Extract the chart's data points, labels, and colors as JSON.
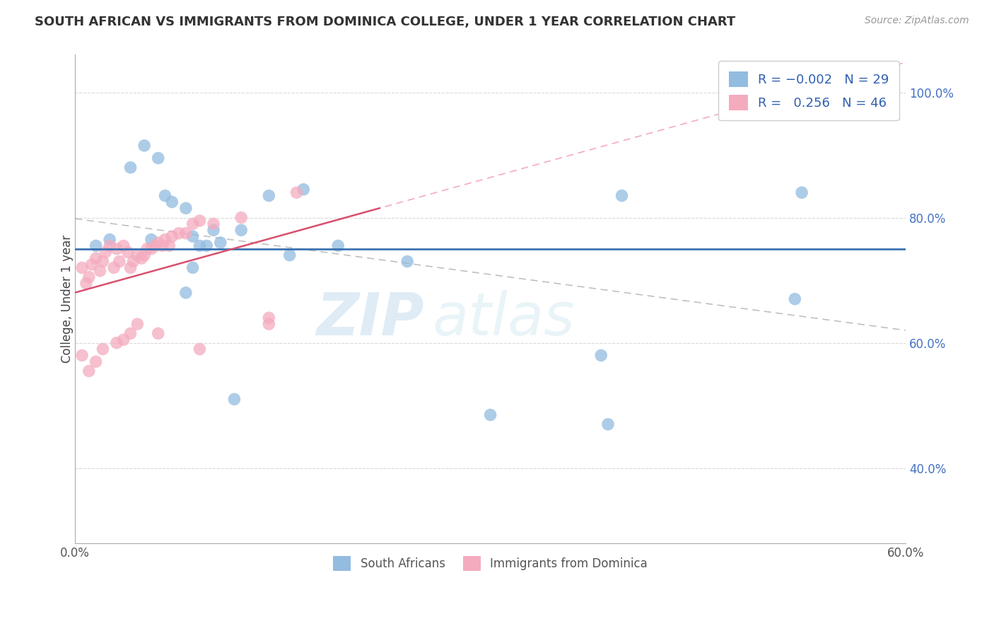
{
  "title": "SOUTH AFRICAN VS IMMIGRANTS FROM DOMINICA COLLEGE, UNDER 1 YEAR CORRELATION CHART",
  "source": "Source: ZipAtlas.com",
  "ylabel": "College, Under 1 year",
  "xlim": [
    0.0,
    0.6
  ],
  "ylim": [
    0.28,
    1.06
  ],
  "xtick_labels": [
    "0.0%",
    "",
    "",
    "",
    "",
    "",
    "60.0%"
  ],
  "xtick_vals": [
    0.0,
    0.1,
    0.2,
    0.3,
    0.4,
    0.5,
    0.6
  ],
  "ytick_labels": [
    "40.0%",
    "60.0%",
    "80.0%",
    "100.0%"
  ],
  "ytick_vals": [
    0.4,
    0.6,
    0.8,
    1.0
  ],
  "legend_bottom1": "South Africans",
  "legend_bottom2": "Immigrants from Dominica",
  "blue_dot_color": "#92bce0",
  "pink_dot_color": "#f4abbe",
  "blue_line_color": "#3b72b0",
  "pink_line_color": "#d94f6e",
  "dashed_blue_color": "#c0c0c0",
  "dashed_pink_color": "#f4abbe",
  "watermark_zip": "ZIP",
  "watermark_atlas": "atlas",
  "blue_dots_x": [
    0.015,
    0.04,
    0.05,
    0.06,
    0.065,
    0.07,
    0.08,
    0.085,
    0.09,
    0.095,
    0.1,
    0.105,
    0.12,
    0.14,
    0.165,
    0.19,
    0.24,
    0.3,
    0.385,
    0.395,
    0.52,
    0.525,
    0.025,
    0.055,
    0.08,
    0.085,
    0.115,
    0.155,
    0.38
  ],
  "blue_dots_y": [
    0.755,
    0.88,
    0.915,
    0.895,
    0.835,
    0.825,
    0.815,
    0.77,
    0.755,
    0.755,
    0.78,
    0.76,
    0.78,
    0.835,
    0.845,
    0.755,
    0.73,
    0.485,
    0.47,
    0.835,
    0.67,
    0.84,
    0.765,
    0.765,
    0.68,
    0.72,
    0.51,
    0.74,
    0.58
  ],
  "pink_dots_x": [
    0.005,
    0.008,
    0.01,
    0.012,
    0.015,
    0.018,
    0.02,
    0.022,
    0.025,
    0.028,
    0.03,
    0.032,
    0.035,
    0.038,
    0.04,
    0.042,
    0.045,
    0.048,
    0.05,
    0.052,
    0.055,
    0.058,
    0.06,
    0.063,
    0.065,
    0.068,
    0.07,
    0.075,
    0.08,
    0.085,
    0.09,
    0.1,
    0.12,
    0.14,
    0.16,
    0.005,
    0.01,
    0.015,
    0.02,
    0.03,
    0.035,
    0.04,
    0.045,
    0.06,
    0.09,
    0.14
  ],
  "pink_dots_y": [
    0.72,
    0.695,
    0.705,
    0.725,
    0.735,
    0.715,
    0.73,
    0.745,
    0.755,
    0.72,
    0.75,
    0.73,
    0.755,
    0.745,
    0.72,
    0.73,
    0.74,
    0.735,
    0.74,
    0.75,
    0.75,
    0.755,
    0.76,
    0.755,
    0.765,
    0.755,
    0.77,
    0.775,
    0.775,
    0.79,
    0.795,
    0.79,
    0.8,
    0.63,
    0.84,
    0.58,
    0.555,
    0.57,
    0.59,
    0.6,
    0.605,
    0.615,
    0.63,
    0.615,
    0.59,
    0.64
  ],
  "background_color": "#ffffff",
  "grid_color": "#cccccc",
  "grid_dashed_color": "#dddddd"
}
